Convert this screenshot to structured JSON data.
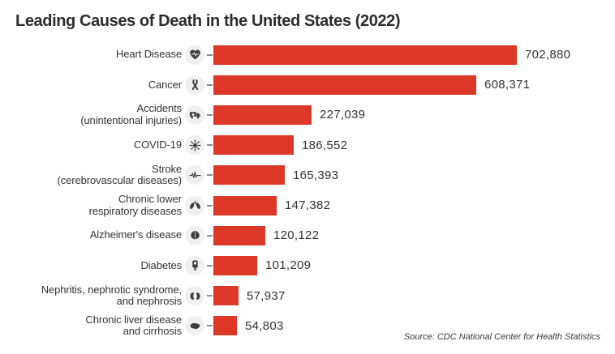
{
  "chart_data": {
    "type": "bar",
    "orientation": "horizontal",
    "title": "Leading Causes of Death in the United States (2022)",
    "source": "Source: CDC National Center for Health Statistics",
    "bar_color": "#dc3827",
    "xlim": [
      0,
      702880
    ],
    "grid": false,
    "legend": false,
    "categories": [
      "Heart Disease",
      "Cancer",
      "Accidents (unintentional injuries)",
      "COVID-19",
      "Stroke (cerebrovascular diseases)",
      "Chronic lower respiratory diseases",
      "Alzheimer's disease",
      "Diabetes",
      "Nephritis, nephrotic syndrome, and nephrosis",
      "Chronic liver disease and cirrhosis"
    ],
    "values": [
      702880,
      608371,
      227039,
      186552,
      165393,
      147382,
      120122,
      101209,
      57937,
      54803
    ],
    "rows": [
      {
        "label_lines": [
          "Heart Disease"
        ],
        "icon": "heart-pulse-icon",
        "value": 702880,
        "value_label": "702,880"
      },
      {
        "label_lines": [
          "Cancer"
        ],
        "icon": "cancer-ribbon-icon",
        "value": 608371,
        "value_label": "608,371"
      },
      {
        "label_lines": [
          "Accidents",
          "(unintentional injuries)"
        ],
        "icon": "ambulance-icon",
        "value": 227039,
        "value_label": "227,039"
      },
      {
        "label_lines": [
          "COVID-19"
        ],
        "icon": "virus-icon",
        "value": 186552,
        "value_label": "186,552"
      },
      {
        "label_lines": [
          "Stroke",
          "(cerebrovascular diseases)"
        ],
        "icon": "ekg-waveform-icon",
        "value": 165393,
        "value_label": "165,393"
      },
      {
        "label_lines": [
          "Chronic lower",
          "respiratory diseases"
        ],
        "icon": "lungs-icon",
        "value": 147382,
        "value_label": "147,382"
      },
      {
        "label_lines": [
          "Alzheimer's disease"
        ],
        "icon": "brain-icon",
        "value": 120122,
        "value_label": "120,122"
      },
      {
        "label_lines": [
          "Diabetes"
        ],
        "icon": "glucose-meter-icon",
        "value": 101209,
        "value_label": "101,209"
      },
      {
        "label_lines": [
          "Nephritis, nephrotic syndrome,",
          "and nephrosis"
        ],
        "icon": "kidneys-icon",
        "value": 57937,
        "value_label": "57,937"
      },
      {
        "label_lines": [
          "Chronic liver disease",
          "and cirrhosis"
        ],
        "icon": "liver-icon",
        "value": 54803,
        "value_label": "54,803"
      }
    ]
  }
}
